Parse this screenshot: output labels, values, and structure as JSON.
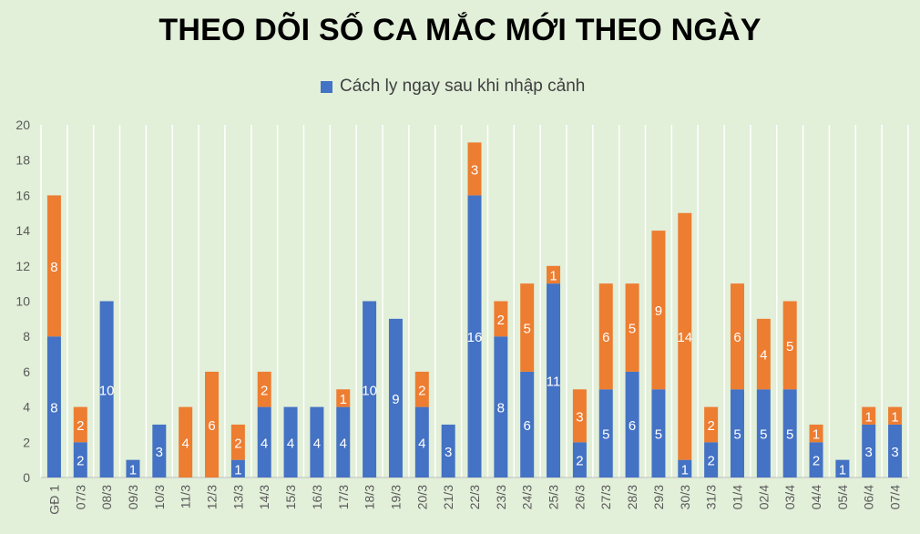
{
  "title": "THEO DÕI SỐ CA MẮC MỚI THEO NGÀY",
  "legend": {
    "label": "Cách ly ngay sau khi nhập cảnh",
    "color": "#4472c4"
  },
  "colors": {
    "blue": "#4472c4",
    "orange": "#ed7d31",
    "grid": "#ffffff",
    "axis": "#595959",
    "bar_label": "#ffffff"
  },
  "chart_data": {
    "type": "bar",
    "stacked": true,
    "title": "THEO DÕI SỐ CA MẮC MỚI THEO NGÀY",
    "categories": [
      "GĐ 1",
      "07/3",
      "08/3",
      "09/3",
      "10/3",
      "11/3",
      "12/3",
      "13/3",
      "14/3",
      "15/3",
      "16/3",
      "17/3",
      "18/3",
      "19/3",
      "20/3",
      "21/3",
      "22/3",
      "23/3",
      "24/3",
      "25/3",
      "26/3",
      "27/3",
      "28/3",
      "29/3",
      "30/3",
      "31/3",
      "01/4",
      "02/4",
      "03/4",
      "04/4",
      "05/4",
      "06/4",
      "07/4"
    ],
    "series": [
      {
        "name": "Cách ly ngay sau khi nhập cảnh",
        "color": "#4472c4",
        "values": [
          8,
          2,
          10,
          1,
          3,
          0,
          0,
          1,
          4,
          4,
          4,
          4,
          10,
          9,
          4,
          3,
          16,
          8,
          6,
          11,
          2,
          5,
          6,
          5,
          1,
          2,
          5,
          5,
          5,
          2,
          1,
          3,
          3
        ]
      },
      {
        "color": "#ed7d31",
        "values": [
          8,
          2,
          0,
          0,
          0,
          4,
          6,
          2,
          2,
          0,
          0,
          1,
          0,
          0,
          2,
          0,
          3,
          2,
          5,
          1,
          3,
          6,
          5,
          9,
          14,
          2,
          6,
          4,
          5,
          1,
          0,
          1,
          1
        ]
      }
    ],
    "ylim": [
      0,
      20
    ],
    "yticks": [
      0,
      2,
      4,
      6,
      8,
      10,
      12,
      14,
      16,
      18,
      20
    ],
    "grid": true,
    "gridlines": "vertical",
    "legend_position": "top"
  }
}
